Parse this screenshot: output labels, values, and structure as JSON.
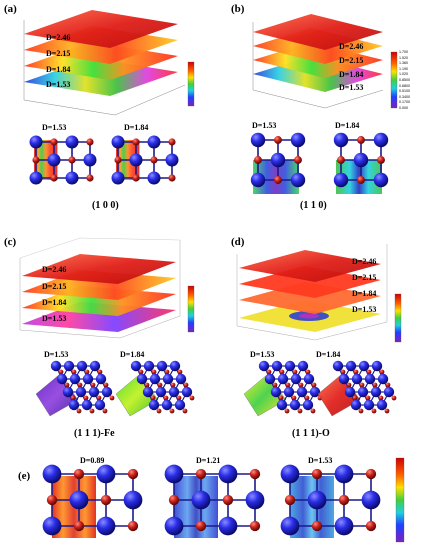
{
  "panels": {
    "a": {
      "label": "(a)",
      "layer_labels": [
        "D=2.46",
        "D=2.15",
        "D=1.84",
        "D=1.53"
      ],
      "slice_labels": [
        "D=1.53",
        "D=1.84"
      ],
      "caption": "(1 0 0)"
    },
    "b": {
      "label": "(b)",
      "layer_labels": [
        "D=2.46",
        "D=2.15",
        "D=1.84",
        "D=1.53"
      ],
      "slice_labels": [
        "D=1.53",
        "D=1.84"
      ],
      "caption": "(1 1 0)",
      "colorbar_ticks": [
        "1.700",
        "1.520",
        "1.360",
        "1.190",
        "1.020",
        "0.8500",
        "0.6800",
        "0.5100",
        "0.3400",
        "0.1700",
        "0.000"
      ]
    },
    "c": {
      "label": "(c)",
      "layer_labels": [
        "D=2.46",
        "D=2.15",
        "D=1.84",
        "D=1.53"
      ],
      "slice_labels": [
        "D=1.53",
        "D=1.84"
      ],
      "caption": "(1 1 1)-Fe"
    },
    "d": {
      "label": "(d)",
      "layer_labels": [
        "D=2.46",
        "D=2.15",
        "D=1.84",
        "D=1.53"
      ],
      "slice_labels": [
        "D=1.53",
        "D=1.84"
      ],
      "caption": "(1 1 1)-O"
    },
    "e": {
      "label": "(e)",
      "slice_labels": [
        "D=0.89",
        "D=1.21",
        "D=1.53"
      ]
    }
  }
}
